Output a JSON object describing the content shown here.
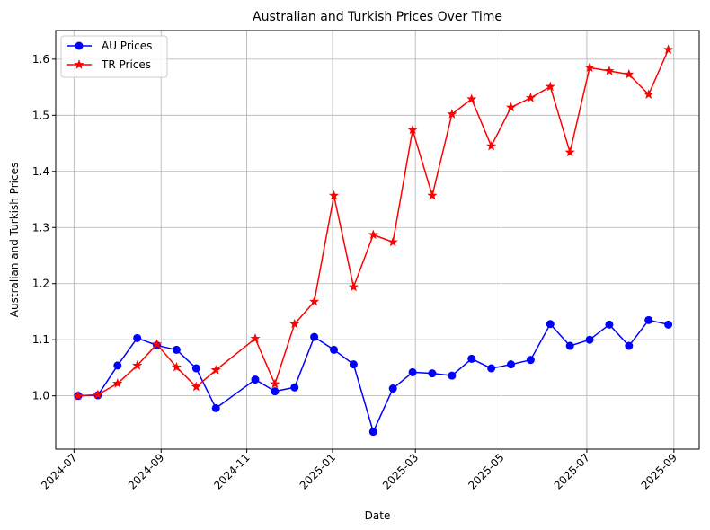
{
  "chart_data": {
    "type": "line",
    "title": "Australian and Turkish Prices Over Time",
    "xlabel": "Date",
    "ylabel": "Australian and Turkish Prices",
    "xlim": [
      "2024-06-18",
      "2025-09-19"
    ],
    "ylim": [
      0.905,
      1.651
    ],
    "grid": true,
    "legend_position": "upper-left",
    "x_ticks": [
      "2024-07",
      "2024-09",
      "2024-11",
      "2025-01",
      "2025-03",
      "2025-05",
      "2025-07",
      "2025-09"
    ],
    "y_ticks": [
      "1.0",
      "1.1",
      "1.2",
      "1.3",
      "1.4",
      "1.5",
      "1.6"
    ],
    "series": [
      {
        "name": "AU Prices",
        "color": "#0000ff",
        "marker": "circle",
        "points": [
          {
            "x": "2024-07-04",
            "y": 1.0
          },
          {
            "x": "2024-07-18",
            "y": 1.001
          },
          {
            "x": "2024-08-01",
            "y": 1.054
          },
          {
            "x": "2024-08-15",
            "y": 1.103
          },
          {
            "x": "2024-08-29",
            "y": 1.09
          },
          {
            "x": "2024-09-12",
            "y": 1.082
          },
          {
            "x": "2024-09-26",
            "y": 1.049
          },
          {
            "x": "2024-10-10",
            "y": 0.978
          },
          {
            "x": "2024-11-07",
            "y": 1.029
          },
          {
            "x": "2024-11-21",
            "y": 1.008
          },
          {
            "x": "2024-12-05",
            "y": 1.015
          },
          {
            "x": "2024-12-19",
            "y": 1.105
          },
          {
            "x": "2025-01-02",
            "y": 1.082
          },
          {
            "x": "2025-01-16",
            "y": 1.056
          },
          {
            "x": "2025-01-30",
            "y": 0.936
          },
          {
            "x": "2025-02-13",
            "y": 1.013
          },
          {
            "x": "2025-02-27",
            "y": 1.042
          },
          {
            "x": "2025-03-13",
            "y": 1.04
          },
          {
            "x": "2025-03-27",
            "y": 1.036
          },
          {
            "x": "2025-04-10",
            "y": 1.066
          },
          {
            "x": "2025-04-24",
            "y": 1.049
          },
          {
            "x": "2025-05-08",
            "y": 1.056
          },
          {
            "x": "2025-05-22",
            "y": 1.064
          },
          {
            "x": "2025-06-05",
            "y": 1.128
          },
          {
            "x": "2025-06-19",
            "y": 1.089
          },
          {
            "x": "2025-07-03",
            "y": 1.1
          },
          {
            "x": "2025-07-17",
            "y": 1.127
          },
          {
            "x": "2025-07-31",
            "y": 1.089
          },
          {
            "x": "2025-08-14",
            "y": 1.135
          },
          {
            "x": "2025-08-28",
            "y": 1.127
          }
        ]
      },
      {
        "name": "TR Prices",
        "color": "#ff0000",
        "marker": "star",
        "points": [
          {
            "x": "2024-07-04",
            "y": 1.0
          },
          {
            "x": "2024-07-18",
            "y": 1.002
          },
          {
            "x": "2024-08-01",
            "y": 1.022
          },
          {
            "x": "2024-08-15",
            "y": 1.054
          },
          {
            "x": "2024-08-29",
            "y": 1.092
          },
          {
            "x": "2024-09-12",
            "y": 1.051
          },
          {
            "x": "2024-09-26",
            "y": 1.016
          },
          {
            "x": "2024-10-10",
            "y": 1.046
          },
          {
            "x": "2024-11-07",
            "y": 1.102
          },
          {
            "x": "2024-11-21",
            "y": 1.021
          },
          {
            "x": "2024-12-05",
            "y": 1.128
          },
          {
            "x": "2024-12-19",
            "y": 1.168
          },
          {
            "x": "2025-01-02",
            "y": 1.357
          },
          {
            "x": "2025-01-16",
            "y": 1.194
          },
          {
            "x": "2025-01-30",
            "y": 1.287
          },
          {
            "x": "2025-02-13",
            "y": 1.274
          },
          {
            "x": "2025-02-27",
            "y": 1.474
          },
          {
            "x": "2025-03-13",
            "y": 1.357
          },
          {
            "x": "2025-03-27",
            "y": 1.502
          },
          {
            "x": "2025-04-10",
            "y": 1.529
          },
          {
            "x": "2025-04-24",
            "y": 1.445
          },
          {
            "x": "2025-05-08",
            "y": 1.514
          },
          {
            "x": "2025-05-22",
            "y": 1.531
          },
          {
            "x": "2025-06-05",
            "y": 1.551
          },
          {
            "x": "2025-06-19",
            "y": 1.434
          },
          {
            "x": "2025-07-03",
            "y": 1.585
          },
          {
            "x": "2025-07-17",
            "y": 1.579
          },
          {
            "x": "2025-07-31",
            "y": 1.573
          },
          {
            "x": "2025-08-14",
            "y": 1.537
          },
          {
            "x": "2025-08-28",
            "y": 1.617
          }
        ]
      }
    ]
  }
}
